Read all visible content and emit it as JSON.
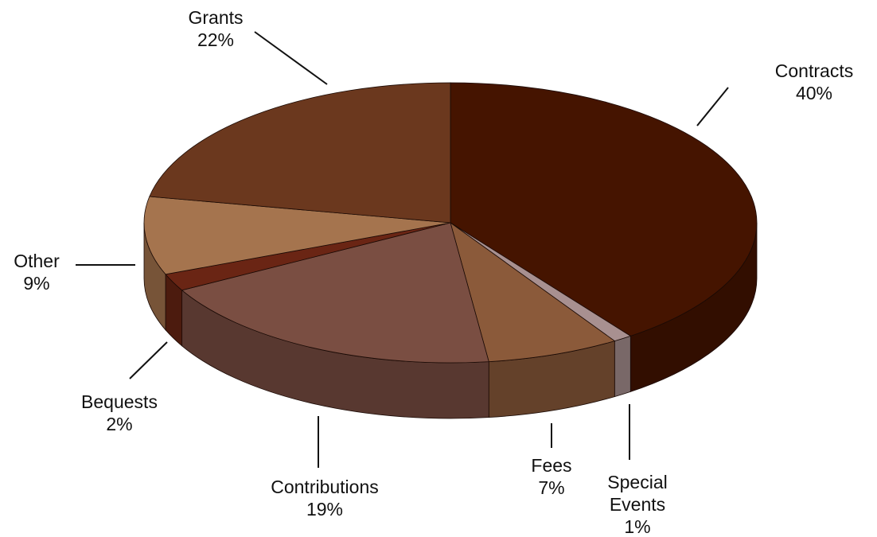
{
  "chart_data": {
    "type": "pie",
    "style": "3d",
    "slices": [
      {
        "label": "Contracts",
        "value": 40,
        "value_label": "40%",
        "color": "#451400"
      },
      {
        "label": "Special Events",
        "label_lines": [
          "Special",
          "Events"
        ],
        "value": 1,
        "value_label": "1%",
        "color": "#A89090"
      },
      {
        "label": "Fees",
        "value": 7,
        "value_label": "7%",
        "color": "#8B5A3A"
      },
      {
        "label": "Contributions",
        "value": 19,
        "value_label": "19%",
        "color": "#7A4E42"
      },
      {
        "label": "Bequests",
        "value": 2,
        "value_label": "2%",
        "color": "#6A2514"
      },
      {
        "label": "Other",
        "value": 9,
        "value_label": "9%",
        "color": "#A5744E"
      },
      {
        "label": "Grants",
        "value": 22,
        "value_label": "22%",
        "color": "#6B381E"
      }
    ]
  }
}
